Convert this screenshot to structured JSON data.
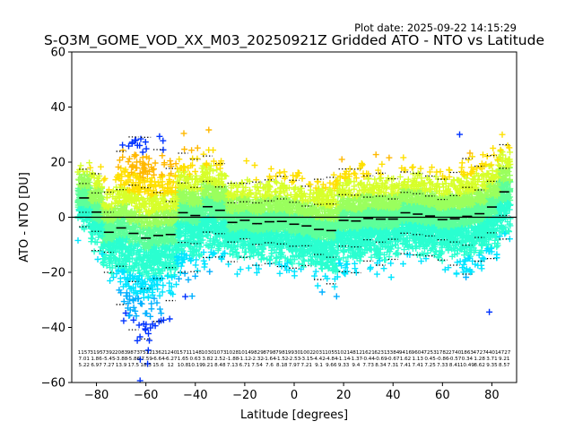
{
  "chart_data": {
    "type": "scatter",
    "title": "S-O3M_GOME_VOD_XX_M03_20250921Z Gridded ATO - NTO vs Latitude",
    "subtitle": "Plot date: 2025-09-22 14:15:29",
    "xlabel": "Latitude [degrees]",
    "ylabel": "ATO - NTO [DU]",
    "xlim": [
      -90,
      90
    ],
    "ylim": [
      -60,
      60
    ],
    "xticks": [
      -80,
      -60,
      -40,
      -20,
      0,
      20,
      40,
      60,
      80
    ],
    "yticks": [
      -60,
      -40,
      -20,
      0,
      20,
      40,
      60
    ],
    "grid": false,
    "marker": "+",
    "zero_line": 0,
    "bin_width": 5,
    "bins": [
      {
        "lat": -85,
        "mean": 7.01,
        "std": 5.22,
        "count": 1157
      },
      {
        "lat": -80,
        "mean": 1.86,
        "std": 6.97,
        "count": 3195
      },
      {
        "lat": -75,
        "mean": -5.45,
        "std": 7.27,
        "count": 7392
      },
      {
        "lat": -70,
        "mean": -3.88,
        "std": 13.9,
        "count": 2083
      },
      {
        "lat": -65,
        "mean": -5.86,
        "std": 17.5,
        "count": 9873
      },
      {
        "lat": -60,
        "mean": -7.59,
        "std": 18.3,
        "count": 7512
      },
      {
        "lat": -55,
        "mean": -6.64,
        "std": 15.6,
        "count": 1362
      },
      {
        "lat": -50,
        "mean": -6.27,
        "std": 12.0,
        "count": 1240
      },
      {
        "lat": -45,
        "mean": 1.65,
        "std": 10.8,
        "count": 1571
      },
      {
        "lat": -40,
        "mean": 0.63,
        "std": 10.19,
        "count": 1148
      },
      {
        "lat": -35,
        "mean": 3.82,
        "std": 9.21,
        "count": 1030
      },
      {
        "lat": -30,
        "mean": 2.52,
        "std": 8.48,
        "count": 1073
      },
      {
        "lat": -25,
        "mean": -1.88,
        "std": 7.13,
        "count": 1028
      },
      {
        "lat": -20,
        "mean": -1.12,
        "std": 6.71,
        "count": 1014
      },
      {
        "lat": -15,
        "mean": -2.32,
        "std": 7.54,
        "count": 9829
      },
      {
        "lat": -10,
        "mean": -1.64,
        "std": 7.6,
        "count": 8798
      },
      {
        "lat": -5,
        "mean": -1.52,
        "std": 8.18,
        "count": 7981
      },
      {
        "lat": 0,
        "mean": -2.53,
        "std": 7.97,
        "count": 9930
      },
      {
        "lat": 5,
        "mean": -3.15,
        "std": 7.21,
        "count": 1002
      },
      {
        "lat": 10,
        "mean": -4.42,
        "std": 9.1,
        "count": 2031
      },
      {
        "lat": 15,
        "mean": -4.84,
        "std": 9.66,
        "count": 1055
      },
      {
        "lat": 20,
        "mean": -1.14,
        "std": 9.33,
        "count": 1021
      },
      {
        "lat": 25,
        "mean": -1.37,
        "std": 9.4,
        "count": 4812
      },
      {
        "lat": 30,
        "mean": -0.44,
        "std": 7.73,
        "count": 1621
      },
      {
        "lat": 35,
        "mean": -0.69,
        "std": 8.34,
        "count": 6231
      },
      {
        "lat": 40,
        "mean": -0.67,
        "std": 7.31,
        "count": 3384
      },
      {
        "lat": 45,
        "mean": 1.62,
        "std": 7.41,
        "count": 9416
      },
      {
        "lat": 50,
        "mean": 1.13,
        "std": 7.41,
        "count": 9604
      },
      {
        "lat": 55,
        "mean": 0.45,
        "std": 7.25,
        "count": 7253
      },
      {
        "lat": 60,
        "mean": -0.86,
        "std": 7.33,
        "count": 1782
      },
      {
        "lat": 65,
        "mean": -0.57,
        "std": 8.41,
        "count": 2740
      },
      {
        "lat": 70,
        "mean": 0.34,
        "std": 10.49,
        "count": 1863
      },
      {
        "lat": 75,
        "mean": 1.28,
        "std": 8.62,
        "count": 4727
      },
      {
        "lat": 80,
        "mean": 3.71,
        "std": 9.35,
        "count": 4401
      },
      {
        "lat": 85,
        "mean": 9.21,
        "std": 8.57,
        "count": 4727
      }
    ]
  },
  "colors": {
    "background": "#ffffff",
    "axes": "#000000",
    "scatter_palette": [
      "#00008b",
      "#0033ff",
      "#00b0ff",
      "#00e5ff",
      "#2affd0",
      "#5dff9a",
      "#9aff5d",
      "#d7ff2a",
      "#ffe000",
      "#ffb800"
    ]
  }
}
